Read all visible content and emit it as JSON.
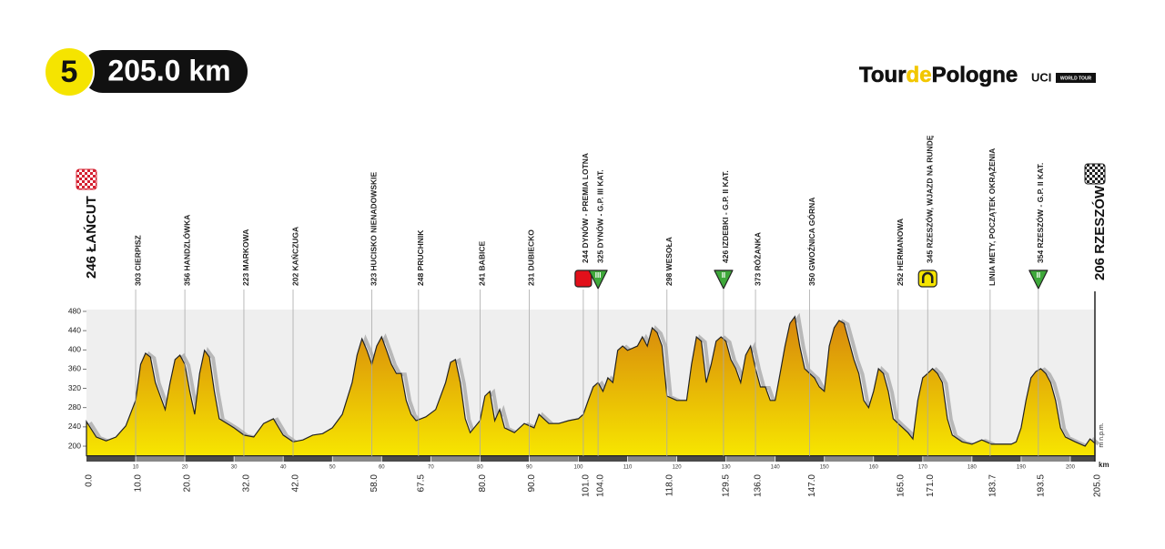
{
  "header": {
    "stage": "5",
    "distance": "205.0 km"
  },
  "logo": {
    "tour": "Tour",
    "de": "de",
    "pologne": "Pologne",
    "uci": "UCI",
    "world_tour": "WORLD TOUR"
  },
  "chart_data": {
    "type": "area",
    "x_unit": "km",
    "y_unit": "m n.p.m.",
    "xlim": [
      0,
      205
    ],
    "ylim": [
      180,
      480
    ],
    "xticks": [
      10,
      20,
      30,
      40,
      50,
      60,
      70,
      80,
      90,
      100,
      110,
      120,
      130,
      140,
      150,
      160,
      170,
      180,
      190,
      200
    ],
    "yticks": [
      200,
      240,
      280,
      320,
      360,
      400,
      440,
      480
    ],
    "grid": false,
    "color_low": "#f7e600",
    "color_high": "#d6850c",
    "x": [
      0,
      2,
      4,
      6,
      8,
      10,
      11,
      12,
      13,
      14,
      16,
      17,
      18,
      19,
      20,
      21,
      22,
      23,
      24,
      25,
      26,
      27,
      30,
      32,
      34,
      36,
      38,
      40,
      42,
      44,
      46,
      48,
      50,
      52,
      54,
      55,
      56,
      57,
      58,
      59,
      60,
      61,
      62,
      63,
      64,
      65,
      66,
      67,
      69,
      71,
      73,
      74,
      75,
      76,
      77,
      78,
      80,
      81,
      82,
      83,
      84,
      85,
      87,
      89,
      91,
      92,
      94,
      96,
      98,
      100,
      101,
      102,
      103,
      104,
      105,
      106,
      107,
      108,
      109,
      110,
      112,
      113,
      114,
      115,
      116,
      117,
      118,
      120,
      122,
      123,
      124,
      125,
      126,
      127,
      128,
      129,
      130,
      131,
      132,
      133,
      134,
      135,
      136,
      137,
      138,
      139,
      140,
      141,
      142,
      143,
      144,
      145,
      146,
      147,
      148,
      149,
      150,
      151,
      152,
      153,
      154,
      155,
      156,
      157,
      158,
      159,
      160,
      161,
      162,
      163,
      164,
      165,
      167,
      168,
      169,
      170,
      171,
      172,
      173,
      174,
      175,
      176,
      178,
      180,
      182,
      184,
      186,
      188,
      189,
      190,
      191,
      192,
      193,
      194,
      195,
      196,
      197,
      198,
      199,
      201,
      203,
      204,
      205
    ],
    "values": [
      251,
      219,
      211,
      219,
      242,
      295,
      370,
      393,
      385,
      332,
      276,
      332,
      380,
      389,
      370,
      314,
      266,
      351,
      399,
      385,
      314,
      257,
      238,
      223,
      219,
      247,
      257,
      223,
      209,
      213,
      223,
      226,
      238,
      266,
      332,
      389,
      423,
      399,
      370,
      408,
      427,
      399,
      370,
      351,
      351,
      295,
      266,
      253,
      261,
      276,
      332,
      374,
      380,
      332,
      257,
      228,
      253,
      304,
      314,
      253,
      276,
      238,
      228,
      247,
      238,
      266,
      247,
      247,
      253,
      257,
      266,
      295,
      323,
      332,
      314,
      342,
      332,
      399,
      408,
      399,
      408,
      427,
      408,
      446,
      436,
      408,
      304,
      295,
      295,
      370,
      427,
      418,
      332,
      370,
      418,
      427,
      418,
      380,
      361,
      332,
      389,
      408,
      361,
      323,
      323,
      295,
      295,
      351,
      408,
      455,
      469,
      408,
      361,
      351,
      342,
      323,
      314,
      408,
      446,
      461,
      455,
      418,
      380,
      351,
      295,
      280,
      314,
      361,
      351,
      314,
      257,
      247,
      228,
      215,
      295,
      342,
      351,
      361,
      351,
      332,
      257,
      223,
      209,
      204,
      213,
      204,
      204,
      204,
      209,
      238,
      295,
      342,
      355,
      361,
      351,
      332,
      295,
      238,
      219,
      209,
      200,
      215,
      206
    ],
    "waypoints": [
      {
        "km": {
          "value": 0,
          "label": "0.0"
        },
        "name": "246 ŁAŃCUT",
        "role": "start"
      },
      {
        "km": {
          "value": 10,
          "label": "10.0"
        },
        "name": "303 CIERPISZ"
      },
      {
        "km": {
          "value": 20,
          "label": "20.0"
        },
        "name": "356 HANDZLÓWKA"
      },
      {
        "km": {
          "value": 32,
          "label": "32.0"
        },
        "name": "223 MARKOWA"
      },
      {
        "km": {
          "value": 42,
          "label": "42.0"
        },
        "name": "202 KAŃCZUGA"
      },
      {
        "km": {
          "value": 58,
          "label": "58.0"
        },
        "name": "323 HUCISKO NIENADOWSKIE"
      },
      {
        "km": 67.5,
        "name": "248 PRUCHNIK"
      },
      {
        "km": {
          "value": 80,
          "label": "80.0"
        },
        "name": "241 BABICE"
      },
      {
        "km": {
          "value": 90,
          "label": "90.0"
        },
        "name": "231 DUBIECKO"
      },
      {
        "km": {
          "value": 101,
          "label": "101.0"
        },
        "name": "244 DYNÓW - PREMIA LOTNA",
        "icon": "sprint"
      },
      {
        "km": {
          "value": 104,
          "label": "104.0"
        },
        "name": "325 DYNÓW - G.P. III KAT.",
        "icon": "kom",
        "icon_label": "III"
      },
      {
        "km": {
          "value": 118,
          "label": "118.0"
        },
        "name": "298 WESOŁA"
      },
      {
        "km": 129.5,
        "name": "426 IZDEBKI - G.P. II KAT.",
        "icon": "kom",
        "icon_label": "II"
      },
      {
        "km": {
          "value": 136,
          "label": "136.0"
        },
        "name": "373 RÓŻANKA"
      },
      {
        "km": {
          "value": 147,
          "label": "147.0"
        },
        "name": "350 GWOŹNICA GÓRNA"
      },
      {
        "km": {
          "value": 165,
          "label": "165.0"
        },
        "name": "252 HERMANOWA"
      },
      {
        "km": {
          "value": 171,
          "label": "171.0"
        },
        "name": "345 RZESZÓW, WJAZD NA RUNDĘ",
        "icon": "lap"
      },
      {
        "km": 183.7,
        "name": "LINIA METY, POCZĄTEK OKRĄŻENIA"
      },
      {
        "km": 193.5,
        "name": "354 RZESZÓW - G.P. II KAT.",
        "icon": "kom",
        "icon_label": "II"
      },
      {
        "km": {
          "value": 205,
          "label": "205.0"
        },
        "name": "206 RZESZÓW",
        "role": "finish"
      }
    ]
  }
}
